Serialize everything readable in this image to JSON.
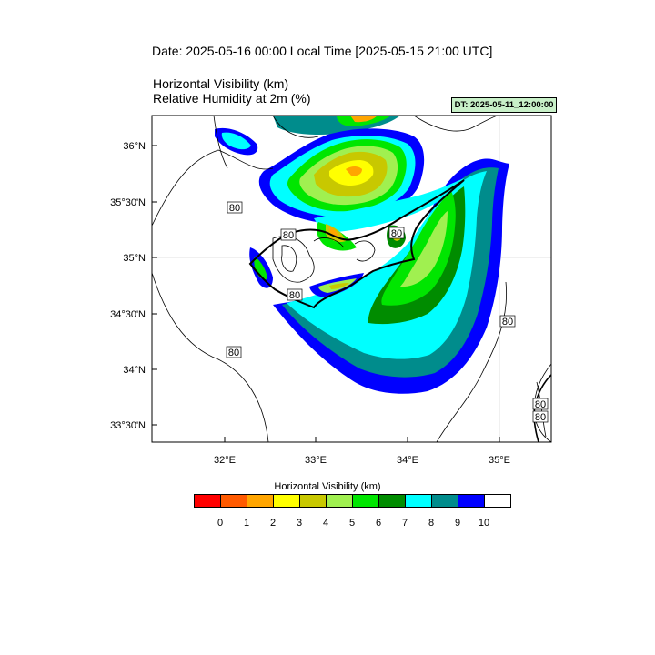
{
  "header": {
    "date_line": "Date: 2025-05-16  00:00 Local Time [2025-05-15  21:00 UTC]",
    "field1": "Horizontal Visibility   (km)",
    "field2": "Relative Humidity at 2m   (%)",
    "dt_badge": "DT: 2025-05-11_12:00:00"
  },
  "map": {
    "lat_labels": [
      "36°N",
      "35°30'N",
      "35°N",
      "34°30'N",
      "34°N",
      "33°30'N"
    ],
    "lon_labels": [
      "32°E",
      "33°E",
      "34°E",
      "35°E"
    ],
    "contour_labels": [
      "80",
      "80",
      "80",
      "80",
      "80",
      "80",
      "80",
      "80"
    ]
  },
  "colorbar": {
    "title": "Horizontal Visibility  (km)",
    "colors": [
      "#ff0000",
      "#ff5a00",
      "#ffa500",
      "#ffff00",
      "#c8c800",
      "#a0f050",
      "#00e600",
      "#008c00",
      "#00ffff",
      "#008c8c",
      "#0000ff",
      "#ffffff"
    ],
    "ticks": [
      "0",
      "1",
      "2",
      "3",
      "4",
      "5",
      "6",
      "7",
      "8",
      "9",
      "10"
    ]
  }
}
